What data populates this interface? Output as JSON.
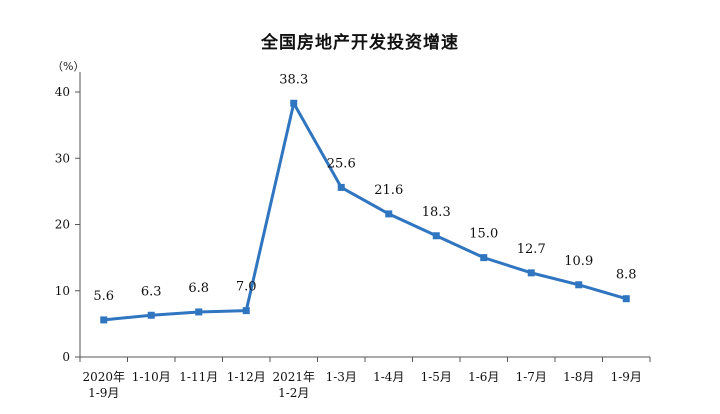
{
  "chart_data": {
    "type": "line",
    "title": "全国房地产开发投资增速",
    "ylabel": "（%）",
    "ylim": [
      0,
      40
    ],
    "yticks": [
      0,
      10,
      20,
      30,
      40
    ],
    "grid": false,
    "categories": [
      {
        "line1": "2020年",
        "line2": "1-9月"
      },
      {
        "line1": "1-10月",
        "line2": ""
      },
      {
        "line1": "1-11月",
        "line2": ""
      },
      {
        "line1": "1-12月",
        "line2": ""
      },
      {
        "line1": "2021年",
        "line2": "1-2月"
      },
      {
        "line1": "1-3月",
        "line2": ""
      },
      {
        "line1": "1-4月",
        "line2": ""
      },
      {
        "line1": "1-5月",
        "line2": ""
      },
      {
        "line1": "1-6月",
        "line2": ""
      },
      {
        "line1": "1-7月",
        "line2": ""
      },
      {
        "line1": "1-8月",
        "line2": ""
      },
      {
        "line1": "1-9月",
        "line2": ""
      }
    ],
    "series": [
      {
        "values": [
          5.6,
          6.3,
          6.8,
          7.0,
          38.3,
          25.6,
          21.6,
          18.3,
          15.0,
          12.7,
          10.9,
          8.8
        ],
        "labels": [
          "5.6",
          "6.3",
          "6.8",
          "7.0",
          "38.3",
          "25.6",
          "21.6",
          "18.3",
          "15.0",
          "12.7",
          "10.9",
          "8.8"
        ],
        "color": "#2f75c0"
      }
    ],
    "axis_color": "#555555"
  }
}
